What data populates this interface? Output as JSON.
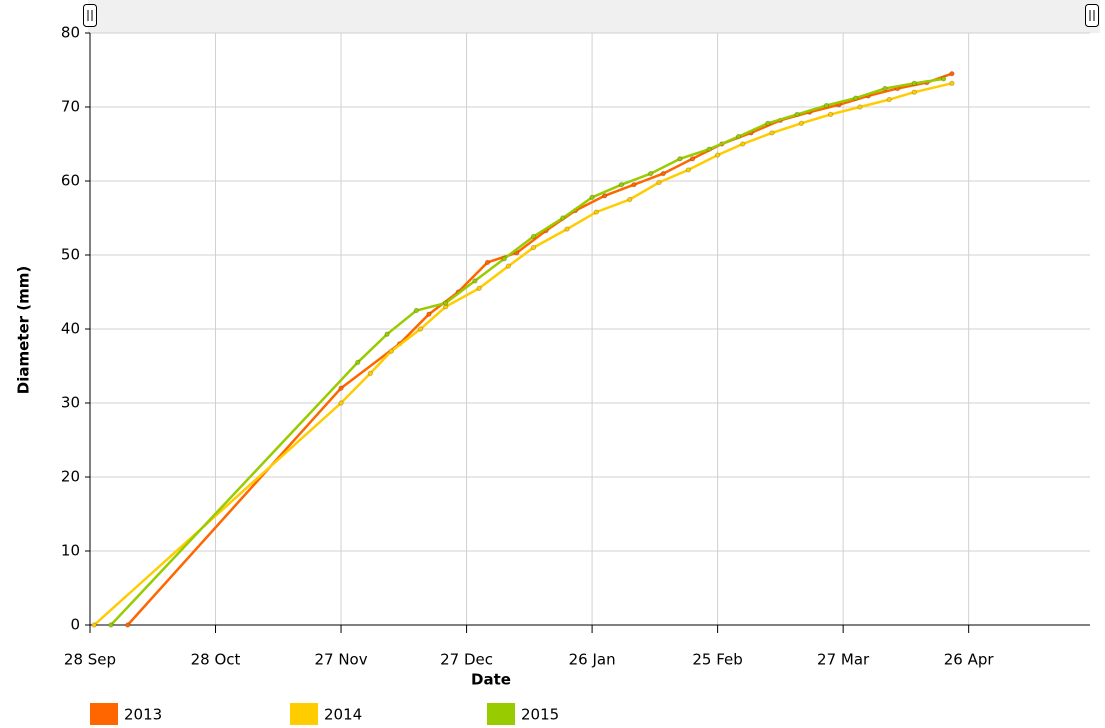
{
  "chart_data": {
    "type": "line",
    "x_label": "Date",
    "y_label": "Diameter (mm)",
    "xlim": [
      "28 Sep",
      "25 May"
    ],
    "xticks": [
      "28 Sep",
      "28 Oct",
      "27 Nov",
      "27 Dec",
      "26 Jan",
      "25 Feb",
      "27 Mar",
      "26 Apr"
    ],
    "ylim": [
      0,
      80
    ],
    "yticks": [
      0,
      10,
      20,
      30,
      40,
      50,
      60,
      70,
      80
    ],
    "grid": true,
    "legend": "bottom",
    "series": [
      {
        "name": "2013",
        "color": "#ff6600",
        "x": [
          "7 Oct",
          "27 Nov",
          "11 Dec",
          "18 Dec",
          "25 Dec",
          "1 Jan",
          "8 Jan",
          "15 Jan",
          "22 Jan",
          "29 Jan",
          "5 Feb",
          "12 Feb",
          "19 Feb",
          "26 Feb",
          "5 Mar",
          "12 Mar",
          "19 Mar",
          "26 Mar",
          "2 Apr",
          "9 Apr",
          "16 Apr",
          "22 Apr"
        ],
        "values": [
          0,
          32,
          38,
          42,
          45,
          49,
          50.3,
          53.3,
          56,
          58,
          59.5,
          61,
          63,
          65,
          66.5,
          68.2,
          69.3,
          70.3,
          71.5,
          72.5,
          73.3,
          74.5
        ]
      },
      {
        "name": "2014",
        "color": "#ffcc00",
        "x": [
          "29 Sep",
          "27 Nov",
          "4 Dec",
          "9 Dec",
          "16 Dec",
          "22 Dec",
          "30 Dec",
          "6 Jan",
          "12 Jan",
          "20 Jan",
          "27 Jan",
          "4 Feb",
          "11 Feb",
          "18 Feb",
          "25 Feb",
          "3 Mar",
          "10 Mar",
          "17 Mar",
          "24 Mar",
          "31 Mar",
          "7 Apr",
          "13 Apr",
          "22 Apr"
        ],
        "values": [
          0,
          30,
          34,
          37,
          40,
          43,
          45.5,
          48.5,
          51,
          53.5,
          55.8,
          57.5,
          59.8,
          61.5,
          63.5,
          65,
          66.5,
          67.8,
          69,
          70,
          71,
          72,
          73.2
        ]
      },
      {
        "name": "2015",
        "color": "#99cc00",
        "x": [
          "3 Oct",
          "1 Dec",
          "8 Dec",
          "15 Dec",
          "22 Dec",
          "29 Dec",
          "5 Jan",
          "12 Jan",
          "19 Jan",
          "26 Jan",
          "2 Feb",
          "9 Feb",
          "16 Feb",
          "23 Feb",
          "2 Mar",
          "9 Mar",
          "16 Mar",
          "23 Mar",
          "30 Mar",
          "6 Apr",
          "13 Apr",
          "20 Apr"
        ],
        "values": [
          0,
          35.5,
          39.3,
          42.5,
          43.5,
          46.5,
          49.5,
          52.5,
          55,
          57.8,
          59.5,
          61,
          63,
          64.3,
          66,
          67.8,
          69,
          70.2,
          71.2,
          72.5,
          73.2,
          73.8
        ]
      }
    ]
  }
}
